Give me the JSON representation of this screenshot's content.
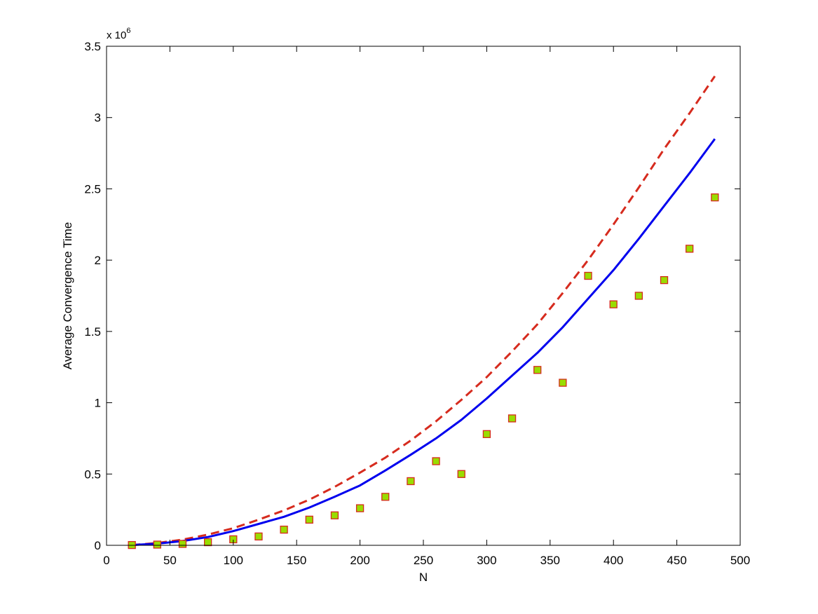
{
  "chart_data": {
    "type": "scatter",
    "title": "",
    "xlabel": "N",
    "ylabel": "Average Convergence Time",
    "xlim": [
      0,
      500
    ],
    "ylim": [
      0,
      3500000
    ],
    "x_ticks": [
      0,
      50,
      100,
      150,
      200,
      250,
      300,
      350,
      400,
      450,
      500
    ],
    "x_tick_labels": [
      "0",
      "50",
      "100",
      "150",
      "200",
      "250",
      "300",
      "350",
      "400",
      "450",
      "500"
    ],
    "y_ticks": [
      0,
      500000,
      1000000,
      1500000,
      2000000,
      2500000,
      3000000,
      3500000
    ],
    "y_tick_labels": [
      "0",
      "0.5",
      "1",
      "1.5",
      "2",
      "2.5",
      "3",
      "3.5"
    ],
    "y_exponent_base": "x 10",
    "y_exponent_power": "6",
    "grid": false,
    "legend": "none",
    "series": [
      {
        "style": "dashed-line",
        "color": "#d62b1e",
        "x": [
          20,
          40,
          60,
          80,
          100,
          120,
          140,
          160,
          180,
          200,
          220,
          240,
          260,
          280,
          300,
          320,
          340,
          360,
          380,
          400,
          420,
          440,
          460,
          480
        ],
        "values": [
          2000,
          16000,
          40000,
          75000,
          120000,
          180000,
          245000,
          320000,
          410000,
          510000,
          615000,
          735000,
          870000,
          1020000,
          1180000,
          1360000,
          1550000,
          1770000,
          2000000,
          2250000,
          2510000,
          2780000,
          3030000,
          3290000
        ]
      },
      {
        "style": "solid-line",
        "color": "#0000ee",
        "x": [
          20,
          40,
          60,
          80,
          100,
          120,
          140,
          160,
          180,
          200,
          220,
          240,
          260,
          280,
          300,
          320,
          340,
          360,
          380,
          400,
          420,
          440,
          460,
          480
        ],
        "values": [
          2000,
          12000,
          30000,
          58000,
          100000,
          150000,
          200000,
          265000,
          340000,
          420000,
          525000,
          635000,
          750000,
          880000,
          1030000,
          1190000,
          1350000,
          1530000,
          1730000,
          1930000,
          2150000,
          2380000,
          2610000,
          2850000
        ]
      },
      {
        "style": "square-markers",
        "color": "#99dd00",
        "edge_color": "#d62b1e",
        "x": [
          20,
          40,
          60,
          80,
          100,
          120,
          140,
          160,
          180,
          200,
          220,
          240,
          260,
          280,
          300,
          320,
          340,
          360,
          380,
          400,
          420,
          440,
          460,
          480
        ],
        "values": [
          2000,
          5000,
          10000,
          22000,
          42000,
          62000,
          110000,
          180000,
          210000,
          260000,
          340000,
          450000,
          590000,
          500000,
          780000,
          890000,
          1230000,
          1140000,
          1890000,
          1690000,
          1750000,
          1860000,
          2080000,
          2440000
        ]
      }
    ]
  }
}
